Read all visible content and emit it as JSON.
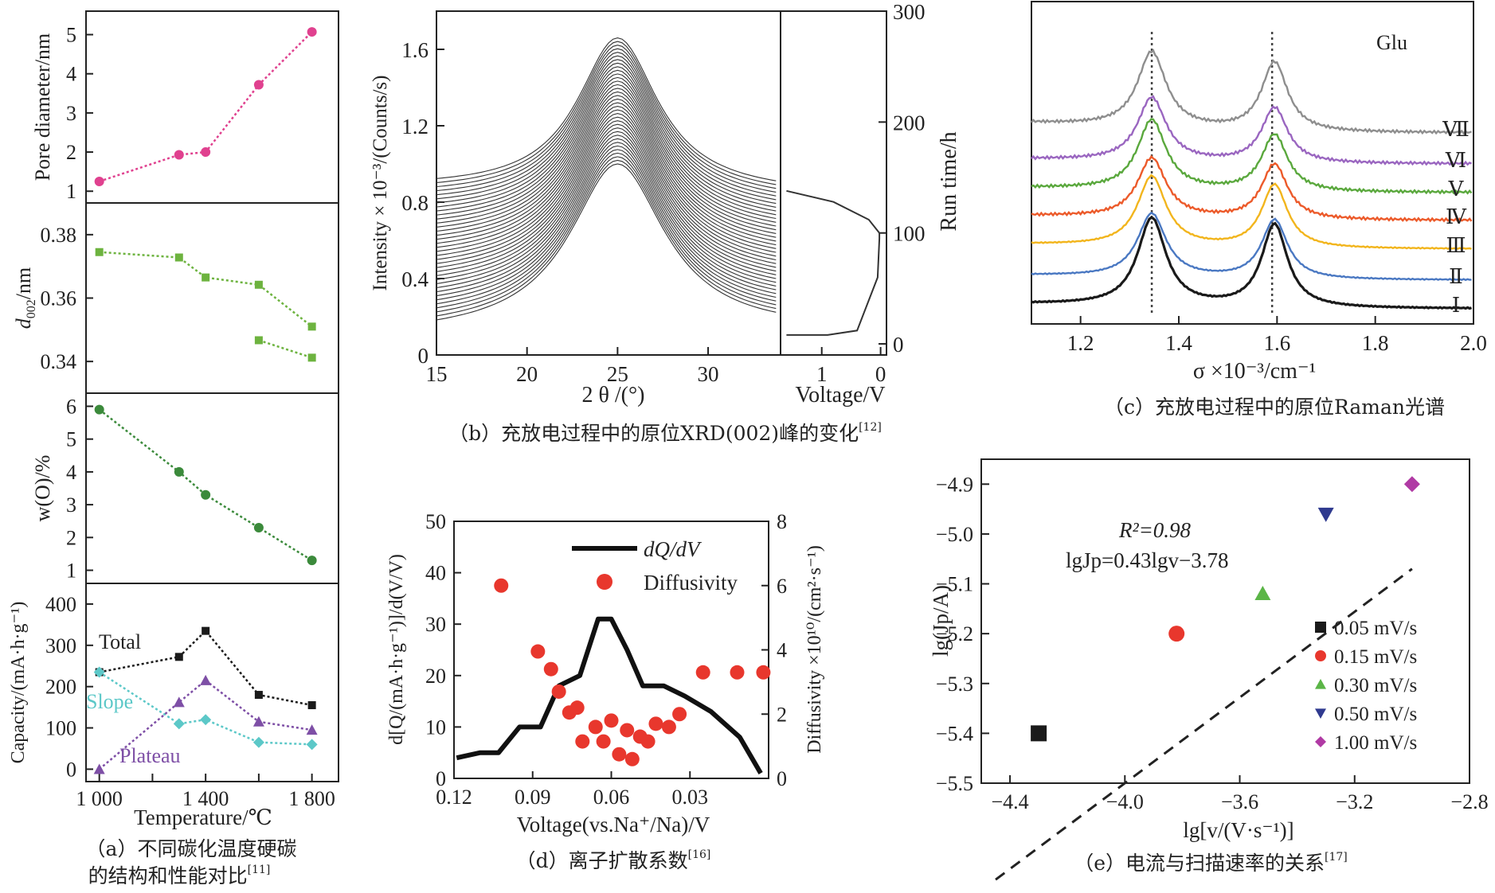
{
  "colors": {
    "pink": "#e0418f",
    "green": "#6db33f",
    "darkgreen": "#3b8a3b",
    "slope": "#5cc8c8",
    "plateau": "#7e4fa6",
    "red": "#e8372d",
    "black": "#1a1a1a",
    "raman": [
      "#1a1a1a",
      "#4a78c2",
      "#f2b51d",
      "#ec5a2a",
      "#5aa83d",
      "#9a66c0",
      "#8e8e8e"
    ]
  },
  "captions": {
    "a": "（a）不同碳化温度硬碳的结构和性能对比",
    "a_line1": "（a）不同碳化温度硬碳",
    "a_line2": "的结构和性能对比",
    "a_ref": "[11]",
    "b": "（b）充放电过程中的原位XRD(002)峰的变化",
    "b_ref": "[12]",
    "c": "（c）充放电过程中的原位Raman光谱",
    "d": "（d）离子扩散系数",
    "d_ref": "[16]",
    "e": "（e）电流与扫描速率的关系",
    "e_ref": "[17]"
  },
  "chart_data": [
    {
      "id": "a1",
      "type": "line",
      "ylabel": "Pore diameter/nm",
      "yticks": [
        1,
        2,
        3,
        4,
        5
      ],
      "ylim": [
        0.7,
        5.6
      ],
      "x": [
        1000,
        1300,
        1400,
        1600,
        1800
      ],
      "series": [
        {
          "values": [
            1.25,
            1.93,
            2.0,
            3.72,
            5.07
          ],
          "color": "#e0418f"
        }
      ]
    },
    {
      "id": "a2",
      "type": "line",
      "ylabel": "d002/nm",
      "ylabel_main": "d",
      "ylabel_sub": "002",
      "ylabel_rest": "/nm",
      "yticks": [
        "0.34",
        "0.36",
        "0.38"
      ],
      "ylim": [
        0.33,
        0.39
      ],
      "x": [
        1000,
        1300,
        1400,
        1600,
        1800
      ],
      "series": [
        {
          "values": [
            0.3745,
            0.3728,
            0.3665,
            0.3642,
            0.351
          ],
          "color": "#6db33f"
        },
        {
          "x": [
            1600,
            1800
          ],
          "values": [
            0.3467,
            0.3412
          ],
          "color": "#6db33f"
        }
      ]
    },
    {
      "id": "a3",
      "type": "line",
      "ylabel": "w(O)/%",
      "yticks": [
        1,
        2,
        3,
        4,
        5,
        6
      ],
      "ylim": [
        0.6,
        6.4
      ],
      "x": [
        1000,
        1300,
        1400,
        1600,
        1800
      ],
      "series": [
        {
          "values": [
            5.9,
            4.0,
            3.3,
            2.3,
            1.3
          ],
          "color": "#3b8a3b"
        }
      ]
    },
    {
      "id": "a4",
      "type": "line",
      "ylabel": "Capacity/(mA·h·g⁻¹)",
      "xlabel": "Temperature/℃",
      "xticks": [
        "1 000",
        "1 400",
        "1 800"
      ],
      "yticks": [
        0,
        100,
        200,
        300,
        400
      ],
      "ylim": [
        -30,
        450
      ],
      "xlim": [
        950,
        1900
      ],
      "x": [
        1000,
        1300,
        1400,
        1600,
        1800
      ],
      "series": [
        {
          "name": "Total",
          "values": [
            235,
            272,
            335,
            180,
            155
          ],
          "color": "#1a1a1a"
        },
        {
          "name": "Slope",
          "values": [
            235,
            110,
            120,
            65,
            60
          ],
          "color": "#5cc8c8"
        },
        {
          "name": "Plateau",
          "values": [
            0,
            162,
            215,
            115,
            95
          ],
          "color": "#7e4fa6"
        }
      ]
    },
    {
      "id": "b",
      "type": "line",
      "xlabel": "2 θ /(°)",
      "ylabel": "Intensity × 10⁻³/(Counts/s)",
      "xticks": [
        15,
        20,
        25,
        30
      ],
      "yticks": [
        "0",
        "0.4",
        "0.8",
        "1.2",
        "1.6"
      ],
      "xlim": [
        15,
        34
      ],
      "ylim": [
        0,
        1.8
      ],
      "curves": 36,
      "peak_x": 25.0,
      "bottom_peak": 1.0,
      "top_peak": 1.66,
      "side_panel": {
        "xlabel": "Voltage/V",
        "ylabel": "Run time/h",
        "xticks": [
          "1",
          "0"
        ],
        "yticks": [
          0,
          100,
          200,
          300
        ],
        "ylim": [
          -10,
          300
        ],
        "voltage_profile": [
          [
            1.6,
            8
          ],
          [
            0.9,
            8
          ],
          [
            0.4,
            12
          ],
          [
            0.05,
            60
          ],
          [
            0.02,
            95
          ],
          [
            0.02,
            100
          ],
          [
            0.2,
            112
          ],
          [
            0.8,
            128
          ],
          [
            1.6,
            138
          ]
        ]
      }
    },
    {
      "id": "c",
      "type": "line",
      "xlabel": "σ ×10⁻³/cm⁻¹",
      "xticks": [
        "1.2",
        "1.4",
        "1.6",
        "1.8",
        "2.0"
      ],
      "xlim": [
        1.1,
        2.0
      ],
      "annotation": "Glu",
      "dashed_lines": [
        1.345,
        1.59
      ],
      "labels": [
        "Ⅰ",
        "Ⅱ",
        "Ⅲ",
        "Ⅳ",
        "Ⅴ",
        "Ⅵ",
        "Ⅶ"
      ]
    },
    {
      "id": "d",
      "type": "line",
      "xlabel": "Voltage(vs.Na⁺/Na)/V",
      "ylabel": "d[Q/(mA·h·g⁻¹)]/d(V/V)",
      "ylabel2": "Diffusivity ×10¹⁰/(cm²·s⁻¹)",
      "xticks": [
        "0.12",
        "0.09",
        "0.06",
        "0.03"
      ],
      "yticks": [
        0,
        10,
        20,
        30,
        40,
        50
      ],
      "yticks2": [
        0,
        2,
        4,
        6,
        8
      ],
      "xlim": [
        0.12,
        0.0
      ],
      "ylim": [
        0,
        50
      ],
      "ylim2": [
        0,
        8
      ],
      "legend": [
        "dQ/dV",
        "Diffusivity"
      ],
      "series": [
        {
          "name": "dQ/dV",
          "x": [
            0.119,
            0.11,
            0.103,
            0.095,
            0.087,
            0.08,
            0.072,
            0.065,
            0.06,
            0.054,
            0.048,
            0.04,
            0.032,
            0.022,
            0.011,
            0.003
          ],
          "values": [
            4,
            5,
            5,
            10,
            10,
            18,
            20,
            31,
            31,
            25,
            18,
            18,
            16,
            13,
            8,
            1
          ]
        },
        {
          "name": "Diffusivity",
          "x": [
            0.102,
            0.088,
            0.083,
            0.08,
            0.076,
            0.073,
            0.071,
            0.066,
            0.063,
            0.06,
            0.057,
            0.054,
            0.052,
            0.049,
            0.046,
            0.043,
            0.038,
            0.034,
            0.025,
            0.012,
            0.002
          ],
          "values": [
            6.0,
            3.95,
            3.4,
            2.7,
            2.05,
            2.2,
            1.15,
            1.6,
            1.15,
            1.8,
            0.75,
            1.5,
            0.6,
            1.3,
            1.15,
            1.7,
            1.6,
            2.0,
            3.3,
            3.3,
            3.3
          ]
        }
      ]
    },
    {
      "id": "e",
      "type": "scatter",
      "xlabel": "lg[v/(V·s⁻¹)]",
      "ylabel": "lg(Jp/A)",
      "xticks": [
        "−4.4",
        "−4.0",
        "−3.6",
        "−3.2",
        "−2.8"
      ],
      "yticks": [
        "−5.5",
        "−5.4",
        "−5.3",
        "−5.2",
        "−5.1",
        "−5.0",
        "−4.9"
      ],
      "xlim": [
        -4.5,
        -2.8
      ],
      "ylim": [
        -5.5,
        -4.85
      ],
      "annotation_r2": "R²=0.98",
      "annotation_fit": "lgJp=0.43lgv−3.78",
      "fit": {
        "slope": 0.43,
        "intercept": -3.78
      },
      "series": [
        {
          "name": "0.05 mV/s",
          "x": -4.3,
          "y": -5.4,
          "marker": "square",
          "color": "#1a1a1a"
        },
        {
          "name": "0.15 mV/s",
          "x": -3.82,
          "y": -5.2,
          "marker": "circle",
          "color": "#e8372d"
        },
        {
          "name": "0.30 mV/s",
          "x": -3.52,
          "y": -5.12,
          "marker": "triangle-up",
          "color": "#5bb547"
        },
        {
          "name": "0.50 mV/s",
          "x": -3.3,
          "y": -4.96,
          "marker": "triangle-down",
          "color": "#2f3a8f"
        },
        {
          "name": "1.00 mV/s",
          "x": -3.0,
          "y": -4.9,
          "marker": "diamond",
          "color": "#b03aa4"
        }
      ]
    }
  ]
}
